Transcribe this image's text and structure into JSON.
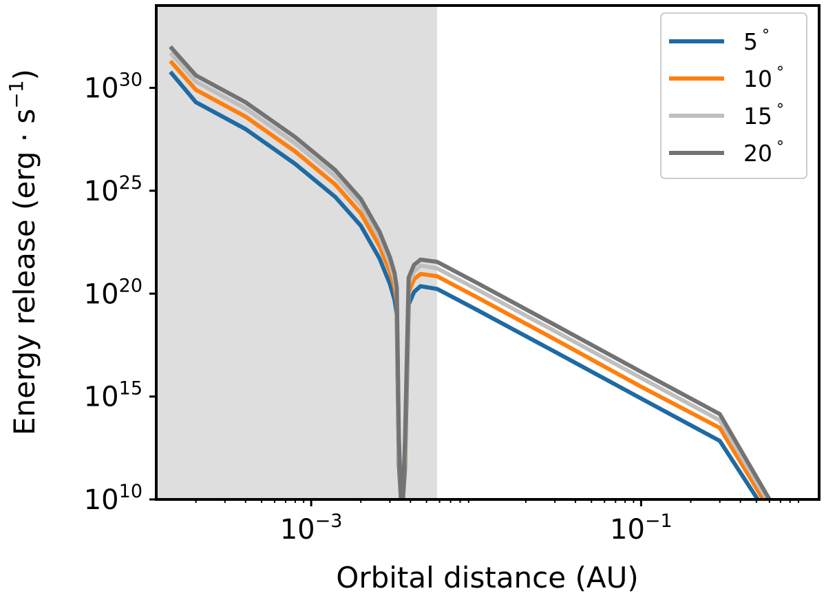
{
  "chart_data": {
    "type": "line",
    "title": "",
    "xlabel": "Orbital distance (AU)",
    "ylabel": "Energy release (erg · s",
    "ylabel_exp": "−1",
    "ylabel_close": ")",
    "xscale": "log",
    "yscale": "log",
    "xlim": [
      0.000115,
      1.2
    ],
    "ylim": [
      10000000000.0,
      1e+35
    ],
    "x_ticks": [
      {
        "value": 0.001,
        "base": "10",
        "exp": "−3"
      },
      {
        "value": 0.1,
        "base": "10",
        "exp": "−1"
      }
    ],
    "y_ticks": [
      {
        "value": 10000000000.0,
        "base": "10",
        "exp": "10"
      },
      {
        "value": 1000000000000000.0,
        "base": "10",
        "exp": "15"
      },
      {
        "value": 1e+20,
        "base": "10",
        "exp": "20"
      },
      {
        "value": 1e+25,
        "base": "10",
        "exp": "25"
      },
      {
        "value": 1e+30,
        "base": "10",
        "exp": "30"
      }
    ],
    "shaded_region": {
      "x_start": 0.000115,
      "x_end": 0.0058,
      "color": "#dedede"
    },
    "grid": false,
    "legend_position": "top-right",
    "series": [
      {
        "name": "5",
        "unit": "°",
        "color": "#1f6aa3",
        "x": [
          0.00014,
          0.0002,
          0.0004,
          0.0008,
          0.0014,
          0.002,
          0.0026,
          0.003,
          0.0032,
          0.0033,
          0.0034,
          0.0035,
          0.0036,
          0.0037,
          0.0039,
          0.0042,
          0.0046,
          0.0058,
          0.01,
          0.03,
          0.1,
          0.3,
          0.51
        ],
        "y": [
          6e+30,
          2e+29,
          1e+28,
          2e+26,
          5e+24,
          2e+23,
          5e+21,
          3e+20,
          5e+19,
          1e+19,
          500000000000.0,
          10000000000.0,
          10000000000.0,
          300000000000.0,
          3e+19,
          1.2e+20,
          2.3e+20,
          1.7e+20,
          1.7e+19,
          1.5e+17,
          800000000000000.0,
          7000000000000.0,
          10000000000.0
        ]
      },
      {
        "name": "10",
        "unit": "°",
        "color": "#ff7f0e",
        "x": [
          0.00014,
          0.0002,
          0.0004,
          0.0008,
          0.0014,
          0.002,
          0.0026,
          0.003,
          0.0032,
          0.0033,
          0.0034,
          0.0035,
          0.0036,
          0.0037,
          0.0039,
          0.0042,
          0.0046,
          0.0058,
          0.01,
          0.03,
          0.1,
          0.3,
          0.55
        ],
        "y": [
          2e+31,
          8e+29,
          4e+28,
          8e+26,
          2e+25,
          8e+23,
          2e+22,
          1.2e+21,
          2e+20,
          4e+19,
          2000000000000.0,
          10000000000.0,
          10000000000.0,
          1000000000000.0,
          1.2e+20,
          5e+20,
          9e+20,
          7e+20,
          7e+19,
          6e+17,
          3000000000000000.0,
          30000000000000.0,
          10000000000.0
        ]
      },
      {
        "name": "15",
        "unit": "°",
        "color": "#bfbfbf",
        "x": [
          0.00014,
          0.0002,
          0.0004,
          0.0008,
          0.0014,
          0.002,
          0.0026,
          0.003,
          0.0032,
          0.0033,
          0.0034,
          0.0035,
          0.0036,
          0.0037,
          0.0039,
          0.0042,
          0.0046,
          0.0058,
          0.01,
          0.03,
          0.1,
          0.3,
          0.58
        ],
        "y": [
          5e+31,
          2e+30,
          1e+29,
          2e+27,
          5e+25,
          2e+24,
          5e+22,
          3e+21,
          5e+20,
          1e+20,
          5000000000000.0,
          10000000000.0,
          10000000000.0,
          3000000000000.0,
          3e+20,
          1.2e+21,
          2.3e+21,
          1.7e+21,
          1.7e+20,
          1.5e+18,
          8000000000000000.0,
          70000000000000.0,
          10000000000.0
        ]
      },
      {
        "name": "20",
        "unit": "°",
        "color": "#737373",
        "x": [
          0.00014,
          0.0002,
          0.0004,
          0.0008,
          0.0014,
          0.002,
          0.0026,
          0.003,
          0.0032,
          0.0033,
          0.0034,
          0.0035,
          0.0036,
          0.0037,
          0.0039,
          0.0042,
          0.0046,
          0.0058,
          0.01,
          0.03,
          0.1,
          0.3,
          0.6
        ],
        "y": [
          1e+32,
          4e+30,
          2e+29,
          4e+27,
          1e+26,
          4e+24,
          1e+23,
          6e+21,
          1e+21,
          2e+20,
          10000000000000.0,
          10000000000.0,
          10000000000.0,
          6000000000000.0,
          6e+20,
          2.5e+21,
          4.5e+21,
          3.5e+21,
          3.5e+20,
          3e+18,
          1.6e+16,
          140000000000000.0,
          10000000000.0
        ]
      }
    ]
  }
}
